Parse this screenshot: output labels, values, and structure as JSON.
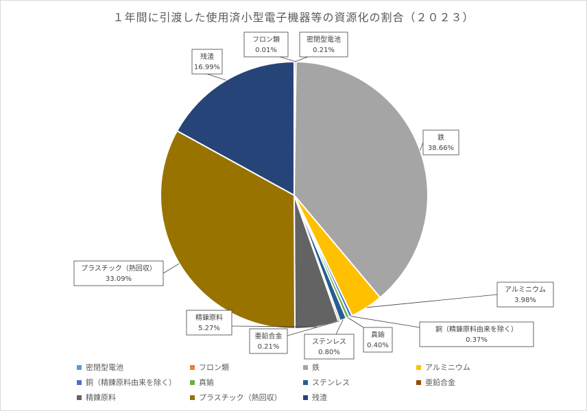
{
  "chart_data": {
    "type": "pie",
    "title": "１年間に引渡した使用済小型電子機器等の資源化の割合（２０２３）",
    "slices": [
      {
        "name": "密閉型電池",
        "value": 0.21,
        "label": "0.21%",
        "color": "#5b9bd5"
      },
      {
        "name": "フロン類",
        "value": 0.01,
        "label": "0.01%",
        "color": "#ed7d31"
      },
      {
        "name": "鉄",
        "value": 38.66,
        "label": "38.66%",
        "color": "#a5a5a5"
      },
      {
        "name": "アルミニウム",
        "value": 3.98,
        "label": "3.98%",
        "color": "#ffc000"
      },
      {
        "name": "銅（精錬原料由来を除く）",
        "value": 0.37,
        "label": "0.37%",
        "color": "#4472c4"
      },
      {
        "name": "真鍮",
        "value": 0.4,
        "label": "0.40%",
        "color": "#70ad47"
      },
      {
        "name": "ステンレス",
        "value": 0.8,
        "label": "0.80%",
        "color": "#255e91"
      },
      {
        "name": "亜鉛合金",
        "value": 0.21,
        "label": "0.21%",
        "color": "#9e480e"
      },
      {
        "name": "精錬原料",
        "value": 5.27,
        "label": "5.27%",
        "color": "#636363"
      },
      {
        "name": "プラスチック（熱回収）",
        "value": 33.09,
        "label": "33.09%",
        "color": "#997300"
      },
      {
        "name": "残渣",
        "value": 16.99,
        "label": "16.99%",
        "color": "#264478"
      }
    ],
    "legend_position": "bottom"
  }
}
